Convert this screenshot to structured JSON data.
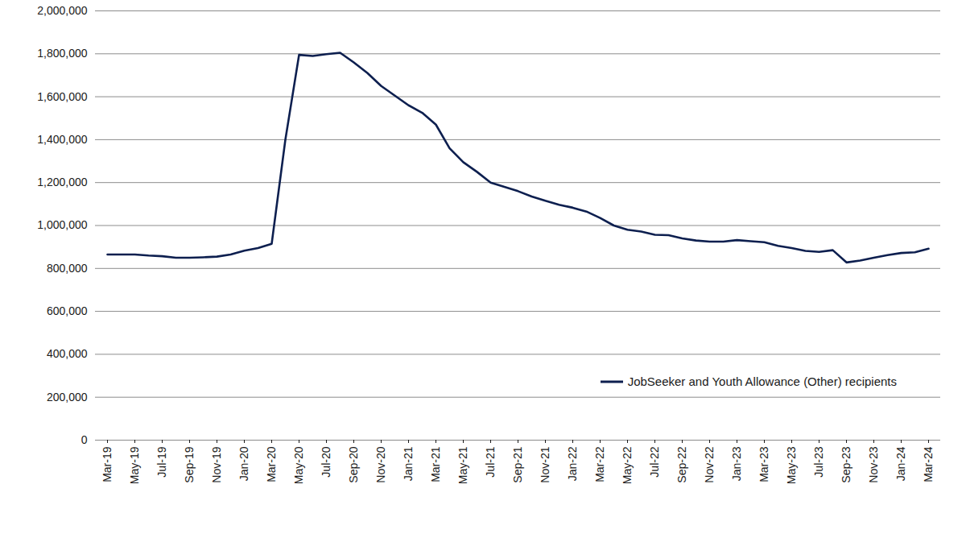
{
  "chart_data": {
    "type": "line",
    "categories": [
      "Mar-19",
      null,
      "May-19",
      null,
      "Jul-19",
      null,
      "Sep-19",
      null,
      "Nov-19",
      null,
      "Jan-20",
      null,
      "Mar-20",
      null,
      "May-20",
      null,
      "Jul-20",
      null,
      "Sep-20",
      null,
      "Nov-20",
      null,
      "Jan-21",
      null,
      "Mar-21",
      null,
      "May-21",
      null,
      "Jul-21",
      null,
      "Sep-21",
      null,
      "Nov-21",
      null,
      "Jan-22",
      null,
      "Mar-22",
      null,
      "May-22",
      null,
      "Jul-22",
      null,
      "Sep-22",
      null,
      "Nov-22",
      null,
      "Jan-23",
      null,
      "Mar-23",
      null,
      "May-23",
      null,
      "Jul-23",
      null,
      "Sep-23",
      null,
      "Nov-23",
      null,
      "Jan-24",
      null,
      "Mar-24"
    ],
    "series": [
      {
        "name": "JobSeeker and Youth Allowance (Other) recipients",
        "color": "#0d1f4f",
        "values": [
          865000,
          865000,
          865000,
          860000,
          857000,
          850000,
          850000,
          852000,
          855000,
          865000,
          883000,
          895000,
          915000,
          1400000,
          1795000,
          1790000,
          1798000,
          1805000,
          1760000,
          1710000,
          1650000,
          1605000,
          1560000,
          1525000,
          1470000,
          1360000,
          1295000,
          1250000,
          1200000,
          1180000,
          1160000,
          1135000,
          1115000,
          1097000,
          1083000,
          1065000,
          1035000,
          1000000,
          980000,
          972000,
          957000,
          955000,
          940000,
          930000,
          925000,
          925000,
          932000,
          927000,
          922000,
          905000,
          895000,
          882000,
          877000,
          885000,
          828000,
          837000,
          850000,
          862000,
          872000,
          875000,
          892000
        ]
      }
    ],
    "ylim": [
      0,
      2000000
    ],
    "yticks": [
      0,
      {
        "value": 200000,
        "label": "200,000"
      },
      {
        "value": 400000,
        "label": "400,000"
      },
      {
        "value": 600000,
        "label": "600,000"
      },
      {
        "value": 800000,
        "label": "800,000"
      },
      {
        "value": 1000000,
        "label": "1,000,000"
      },
      {
        "value": 1200000,
        "label": "1,200,000"
      },
      {
        "value": 1400000,
        "label": "1,400,000"
      },
      {
        "value": 1600000,
        "label": "1,600,000"
      },
      {
        "value": 1800000,
        "label": "1,800,000"
      },
      {
        "value": 2000000,
        "label": "2,000,000"
      }
    ],
    "grid": true,
    "legend": "bottom-right"
  }
}
